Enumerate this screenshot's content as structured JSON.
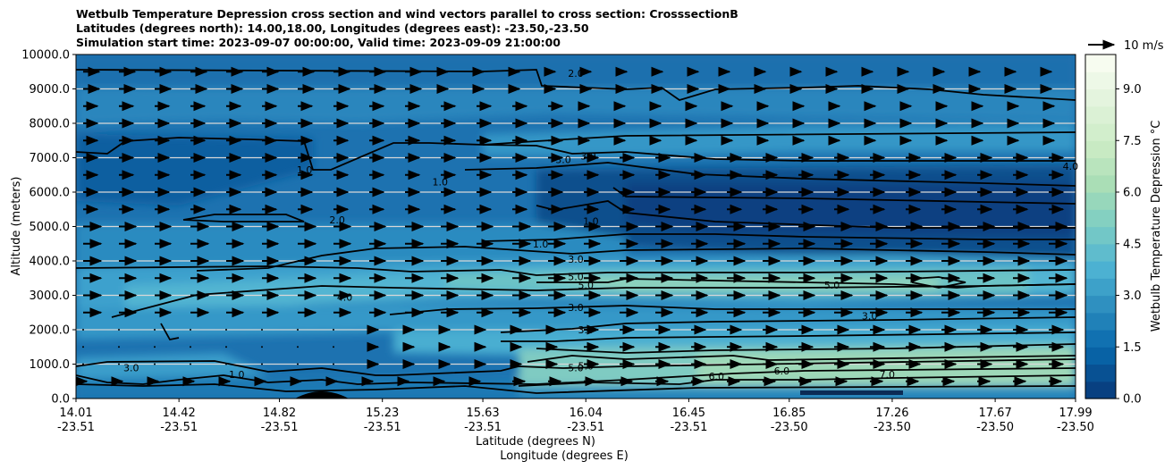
{
  "title_lines": [
    "Wetbulb Temperature Depression cross section and wind vectors parallel to cross section: CrosssectionB",
    "Latitudes (degrees north): 14.00,18.00, Longitudes (degrees east): -23.50,-23.50",
    "Simulation start time: 2023-09-07 00:00:00, Valid time: 2023-09-09 21:00:00"
  ],
  "chart_data": {
    "type": "heatmap",
    "ylabel": "Altitude (meters)",
    "xlabel_lines": [
      "Latitude (degrees N)",
      "Longitude (degrees E)"
    ],
    "ylim": [
      0,
      10000
    ],
    "y_ticks": [
      "0.0",
      "1000.0",
      "2000.0",
      "3000.0",
      "4000.0",
      "5000.0",
      "6000.0",
      "7000.0",
      "8000.0",
      "9000.0",
      "10000.0"
    ],
    "x_ticks": [
      {
        "lat": "14.01",
        "lon": "-23.51"
      },
      {
        "lat": "14.42",
        "lon": "-23.51"
      },
      {
        "lat": "14.82",
        "lon": "-23.51"
      },
      {
        "lat": "15.23",
        "lon": "-23.51"
      },
      {
        "lat": "15.63",
        "lon": "-23.51"
      },
      {
        "lat": "16.04",
        "lon": "-23.51"
      },
      {
        "lat": "16.45",
        "lon": "-23.51"
      },
      {
        "lat": "16.85",
        "lon": "-23.50"
      },
      {
        "lat": "17.26",
        "lon": "-23.50"
      },
      {
        "lat": "17.67",
        "lon": "-23.50"
      },
      {
        "lat": "17.99",
        "lon": "-23.50"
      }
    ],
    "grid": "horizontal",
    "colorbar": {
      "label": "Wetbulb Temperature Depression °C",
      "range": [
        0,
        10
      ],
      "ticks": [
        "0.0",
        "1.5",
        "3.0",
        "4.5",
        "6.0",
        "7.5",
        "9.0"
      ],
      "colors": [
        "#084081",
        "#0868ac",
        "#2b8cbe",
        "#4eb3d3",
        "#7bccc4",
        "#a8ddb5",
        "#ccebc5",
        "#e0f3db",
        "#f7fcf0"
      ]
    },
    "quiver_key": "10 m/s",
    "contour_labels": [
      {
        "text": "2.0",
        "lat": 16.0,
        "z": 9450
      },
      {
        "text": "3.0",
        "lat": 16.05,
        "z": 7050
      },
      {
        "text": "3.0",
        "lat": 15.95,
        "z": 6950
      },
      {
        "text": "1.0",
        "lat": 14.92,
        "z": 6650
      },
      {
        "text": "1.0",
        "lat": 15.46,
        "z": 6300
      },
      {
        "text": "2.0",
        "lat": 15.05,
        "z": 5200
      },
      {
        "text": "1.0",
        "lat": 16.06,
        "z": 5150
      },
      {
        "text": "1.0",
        "lat": 15.86,
        "z": 4500
      },
      {
        "text": "4.0",
        "lat": 17.97,
        "z": 6750
      },
      {
        "text": "3.0",
        "lat": 16.0,
        "z": 4050
      },
      {
        "text": "5.0",
        "lat": 16.0,
        "z": 3550
      },
      {
        "text": "5.0",
        "lat": 16.04,
        "z": 3300
      },
      {
        "text": "4.0",
        "lat": 15.08,
        "z": 2950
      },
      {
        "text": "5.0",
        "lat": 17.02,
        "z": 3300
      },
      {
        "text": "3.0",
        "lat": 16.0,
        "z": 2650
      },
      {
        "text": "3.0",
        "lat": 17.17,
        "z": 2400
      },
      {
        "text": "3.0",
        "lat": 16.04,
        "z": 2000
      },
      {
        "text": "5.0",
        "lat": 16.0,
        "z": 900
      },
      {
        "text": "5.0",
        "lat": 16.04,
        "z": 950
      },
      {
        "text": "6.0",
        "lat": 16.82,
        "z": 800
      },
      {
        "text": "6.0",
        "lat": 16.56,
        "z": 650
      },
      {
        "text": "7.0",
        "lat": 17.24,
        "z": 700
      },
      {
        "text": "3.0",
        "lat": 14.23,
        "z": 900
      },
      {
        "text": "1.0",
        "lat": 14.65,
        "z": 700
      }
    ]
  }
}
